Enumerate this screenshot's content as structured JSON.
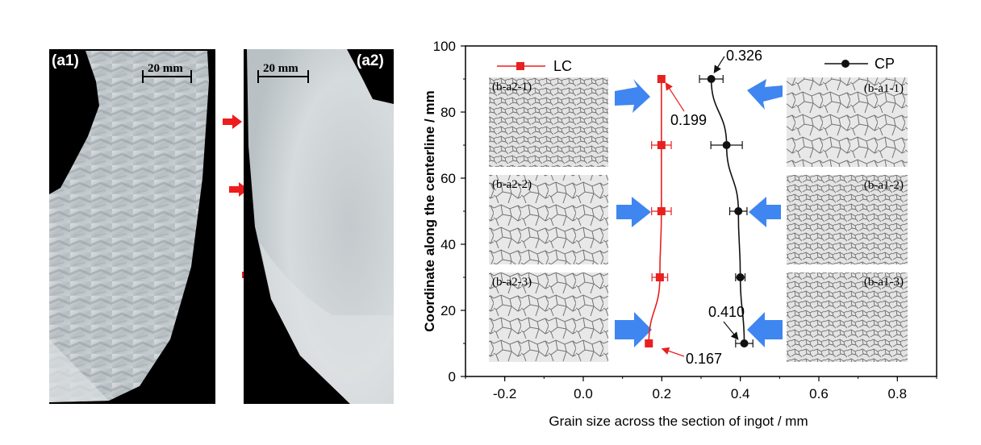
{
  "macro_panels": [
    {
      "tag": "(a1)",
      "scale_label": "20 mm"
    },
    {
      "tag": "(a2)",
      "scale_label": "20 mm"
    }
  ],
  "micrograph_labels": {
    "b_a2_1": "(b-a2-1)",
    "b_a2_2": "(b-a2-2)",
    "b_a2_3": "(b-a2-3)",
    "b_a1_1": "(b-a1-1)",
    "b_a1_2": "(b-a1-2)",
    "b_a1_3": "(b-a1-3)"
  },
  "colors": {
    "lc": "#e8201f",
    "cp": "#111111",
    "arrow_red": "#ee1c1c",
    "arrow_blue": "#3f86f0"
  },
  "chart_data": {
    "type": "scatter",
    "xlabel": "Grain size across the section of ingot / mm",
    "ylabel": "Coordinate along the centerline / mm",
    "xlim": [
      -0.3,
      0.9
    ],
    "ylim": [
      0,
      100
    ],
    "xticks": [
      "-0.2",
      "0.0",
      "0.2",
      "0.4",
      "0.6",
      "0.8"
    ],
    "xtick_values": [
      -0.2,
      0.0,
      0.2,
      0.4,
      0.6,
      0.8
    ],
    "yticks": [
      "0",
      "20",
      "40",
      "60",
      "80",
      "100"
    ],
    "ytick_values": [
      0,
      20,
      40,
      60,
      80,
      100
    ],
    "grid": false,
    "legend_placement": "top",
    "series": [
      {
        "name": "LC",
        "marker": "square",
        "points": [
          {
            "x": 0.199,
            "y": 90,
            "err": 0.0
          },
          {
            "x": 0.199,
            "y": 70,
            "err": 0.025
          },
          {
            "x": 0.199,
            "y": 50,
            "err": 0.025
          },
          {
            "x": 0.195,
            "y": 30,
            "err": 0.02
          },
          {
            "x": 0.167,
            "y": 10,
            "err": 0.0
          }
        ]
      },
      {
        "name": "CP",
        "marker": "circle",
        "points": [
          {
            "x": 0.326,
            "y": 90,
            "err": 0.03
          },
          {
            "x": 0.365,
            "y": 70,
            "err": 0.04
          },
          {
            "x": 0.395,
            "y": 50,
            "err": 0.022
          },
          {
            "x": 0.4,
            "y": 30,
            "err": 0.012
          },
          {
            "x": 0.41,
            "y": 10,
            "err": 0.022
          }
        ]
      }
    ],
    "annotations": [
      {
        "text": "0.326",
        "x": 0.326,
        "y": 90
      },
      {
        "text": "0.199",
        "x": 0.199,
        "y": 90
      },
      {
        "text": "0.410",
        "x": 0.41,
        "y": 10
      },
      {
        "text": "0.167",
        "x": 0.167,
        "y": 10
      }
    ]
  }
}
